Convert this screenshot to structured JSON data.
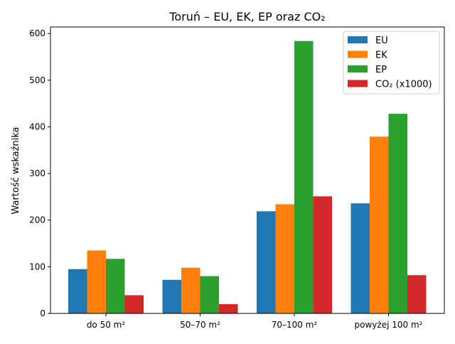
{
  "chart_data": {
    "type": "bar",
    "title": "Toruń – EU, EK, EP oraz CO₂",
    "xlabel": "",
    "ylabel": "Wartość wskaźnika",
    "categories": [
      "do 50 m²",
      "50–70 m²",
      "70–100 m²",
      "powyżej 100 m²"
    ],
    "series": [
      {
        "name": "EU",
        "color": "#1f77b4",
        "values": [
          95,
          72,
          219,
          236
        ]
      },
      {
        "name": "EK",
        "color": "#ff7f0e",
        "values": [
          135,
          98,
          234,
          379
        ]
      },
      {
        "name": "EP",
        "color": "#2ca02c",
        "values": [
          117,
          80,
          584,
          428
        ]
      },
      {
        "name": "CO₂ (x1000)",
        "color": "#d62728",
        "values": [
          39,
          20,
          251,
          82
        ]
      }
    ],
    "ylim": [
      0,
      614
    ],
    "yticks": [
      0,
      100,
      200,
      300,
      400,
      500,
      600
    ],
    "grid": false,
    "legend": "top-right"
  }
}
